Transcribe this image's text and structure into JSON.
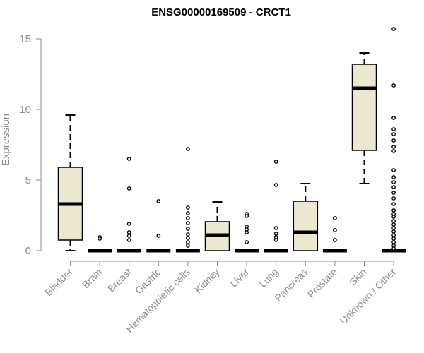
{
  "chart_data": {
    "type": "box",
    "title": "ENSG00000169509 - CRCT1",
    "xlabel": "",
    "ylabel": "Expression",
    "ylim": [
      0,
      15.6
    ],
    "yticks": [
      0,
      5,
      10,
      15
    ],
    "box_color": "#ece7cf",
    "outline_color": "#000000",
    "categories": [
      "Bladder",
      "Brain",
      "Breast",
      "Gastric",
      "Hematopoietic cells",
      "Kidney",
      "Liver",
      "Lung",
      "Pancreas",
      "Prostate",
      "Skin",
      "Unknown / Other"
    ],
    "boxes": [
      {
        "category": "Bladder",
        "whisker_low": 0.0,
        "q1": 0.75,
        "median": 3.3,
        "q3": 5.9,
        "whisker_high": 9.6,
        "outliers": []
      },
      {
        "category": "Brain",
        "whisker_low": 0,
        "q1": 0,
        "median": 0,
        "q3": 0,
        "whisker_high": 0,
        "outliers": [
          0.95,
          0.85
        ]
      },
      {
        "category": "Breast",
        "whisker_low": 0,
        "q1": 0,
        "median": 0,
        "q3": 0,
        "whisker_high": 0,
        "outliers": [
          6.5,
          4.4,
          1.9,
          1.3,
          1.05,
          0.75
        ]
      },
      {
        "category": "Gastric",
        "whisker_low": 0,
        "q1": 0,
        "median": 0,
        "q3": 0,
        "whisker_high": 0,
        "outliers": [
          3.5,
          1.05
        ]
      },
      {
        "category": "Hematopoietic cells",
        "whisker_low": 0,
        "q1": 0,
        "median": 0,
        "q3": 0,
        "whisker_high": 0,
        "outliers": [
          7.2,
          3.05,
          2.65,
          2.3,
          1.95,
          1.55,
          1.15,
          0.9,
          0.6,
          0.35
        ]
      },
      {
        "category": "Kidney",
        "whisker_low": 0.0,
        "q1": 0.0,
        "median": 1.1,
        "q3": 2.05,
        "whisker_high": 3.45,
        "outliers": []
      },
      {
        "category": "Liver",
        "whisker_low": 0,
        "q1": 0,
        "median": 0,
        "q3": 0,
        "whisker_high": 0,
        "outliers": [
          2.6,
          2.45,
          1.7,
          1.5,
          1.3,
          0.6
        ]
      },
      {
        "category": "Lung",
        "whisker_low": 0,
        "q1": 0,
        "median": 0,
        "q3": 0,
        "whisker_high": 0,
        "outliers": [
          6.3,
          4.65,
          1.6,
          1.2,
          0.95,
          0.75
        ]
      },
      {
        "category": "Pancreas",
        "whisker_low": 0.0,
        "q1": 0.0,
        "median": 1.3,
        "q3": 3.5,
        "whisker_high": 4.75,
        "outliers": []
      },
      {
        "category": "Prostate",
        "whisker_low": 0,
        "q1": 0,
        "median": 0,
        "q3": 0,
        "whisker_high": 0,
        "outliers": [
          2.3,
          1.45,
          0.75
        ]
      },
      {
        "category": "Skin",
        "whisker_low": 4.75,
        "q1": 7.1,
        "median": 11.5,
        "q3": 13.2,
        "whisker_high": 14.0,
        "outliers": []
      },
      {
        "category": "Unknown / Other",
        "whisker_low": 0,
        "q1": 0,
        "median": 0,
        "q3": 0,
        "whisker_high": 0,
        "outliers": [
          15.7,
          11.7,
          9.4,
          8.6,
          8.25,
          7.8,
          7.35,
          7.05,
          5.7,
          5.2,
          4.85,
          4.5,
          4.1,
          3.7,
          3.3,
          2.85,
          2.6,
          2.4,
          2.1,
          1.85,
          1.6,
          1.35,
          1.1,
          0.85,
          0.6,
          0.35,
          0.15
        ]
      }
    ]
  }
}
